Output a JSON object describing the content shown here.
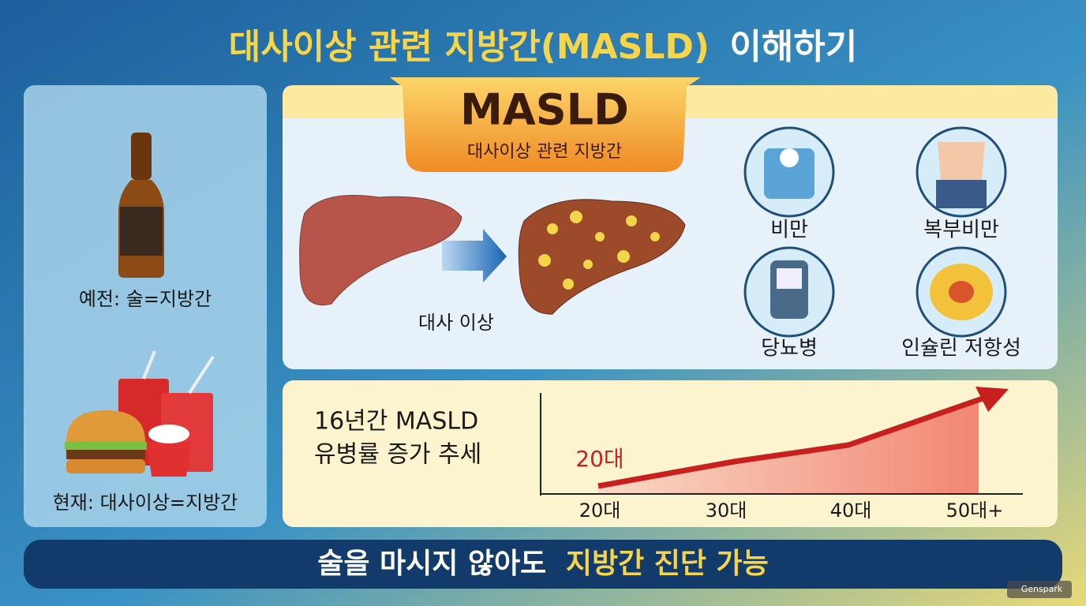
{
  "header": {
    "title_highlight": "대사이상 관련 지방간(MASLD)",
    "title_rest": "이해하기"
  },
  "left_panel": {
    "past_caption": "예전: 술=지방간",
    "present_caption": "현재: 대사이상=지방간"
  },
  "masld_panel": {
    "heading": "MASLD",
    "subheading": "대사이상 관련 지방간",
    "arrow_label": "대사 이상",
    "risk_factors": [
      "비만",
      "복부비만",
      "당뇨병",
      "인슐린 저항성"
    ]
  },
  "trend_panel": {
    "title_line1": "16년간 MASLD",
    "title_line2": "유병률 증가 추세",
    "start_label": "20대",
    "axis_labels": [
      "20대",
      "30대",
      "40대",
      "50대+"
    ]
  },
  "footer": {
    "message_plain": "술을 마시지 않아도",
    "message_highlight": "지방간 진단 가능"
  },
  "watermark": "Genspark"
}
